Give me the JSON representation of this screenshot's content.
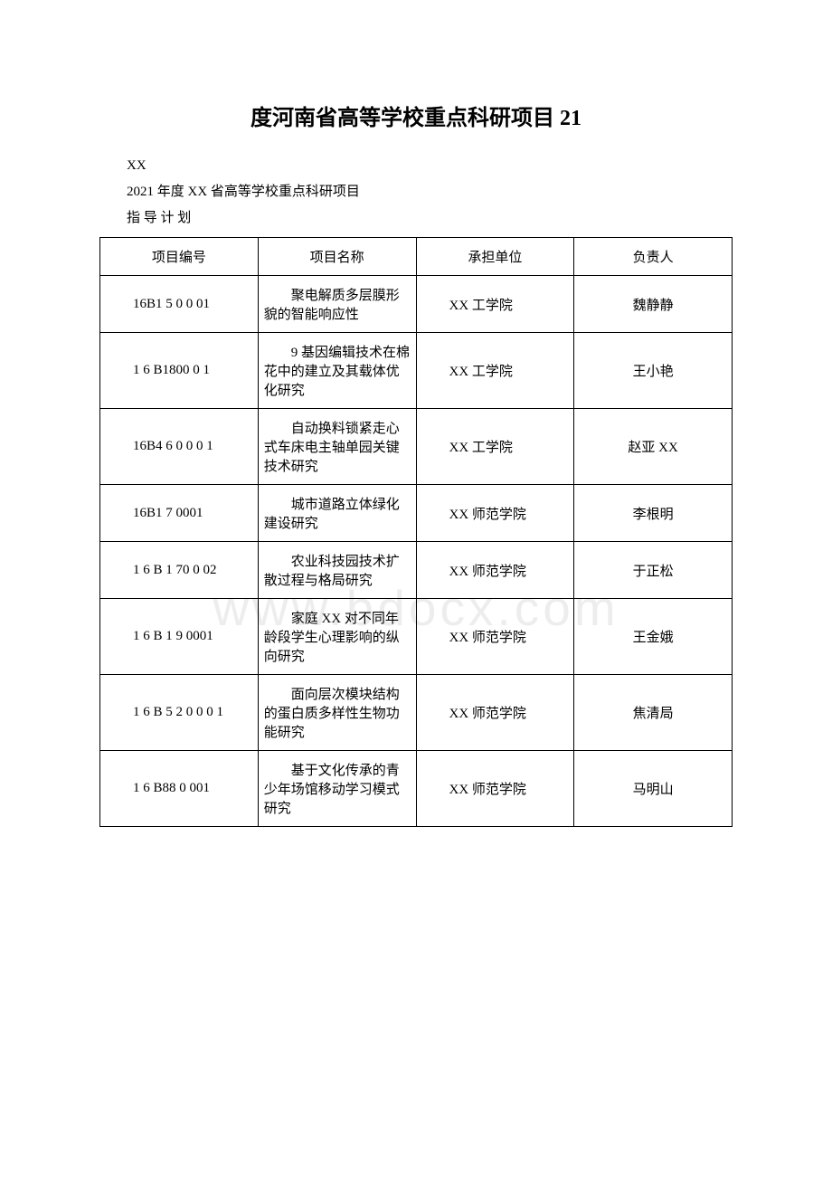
{
  "document": {
    "title": "度河南省高等学校重点科研项目 21",
    "meta_xx": "XX",
    "meta_year": "2021 年度 XX 省高等学校重点科研项目",
    "meta_plan": "指 导   计 划",
    "watermark": "www.bdocx.com"
  },
  "table": {
    "columns": [
      "项目编号",
      "项目名称",
      "承担单位",
      "负责人"
    ],
    "rows": [
      {
        "code": "16B1 5 0 0 01",
        "name": "聚电解质多层膜形貌的智能响应性",
        "unit": "XX 工学院",
        "person": "魏静静"
      },
      {
        "code": "1 6 B1800 0 1",
        "name": "9 基因编辑技术在棉花中的建立及其载体优化研究",
        "unit": "XX 工学院",
        "person": "王小艳"
      },
      {
        "code": "16B4 6 0 0 0  1",
        "name": "自动换料锁紧走心式车床电主轴单园关键技术研究",
        "unit": "XX 工学院",
        "person": "赵亚 XX"
      },
      {
        "code": "16B1 7 0001",
        "name": "城市道路立体绿化建设研究",
        "unit": "XX 师范学院",
        "person": "李根明"
      },
      {
        "code": "1 6 B  1 70  0 02",
        "name": "农业科技园技术扩散过程与格局研究",
        "unit": "XX 师范学院",
        "person": "于正松"
      },
      {
        "code": "1 6 B 1 9 0001",
        "name": "家庭 XX 对不同年龄段学生心理影响的纵向研究",
        "unit": "XX 师范学院",
        "person": "王金娥"
      },
      {
        "code": "1 6 B 5 2 0 0  0 1",
        "name": "面向层次模块结构的蛋白质多样性生物功能研究",
        "unit": "XX 师范学院",
        "person": "焦清局"
      },
      {
        "code": "1 6 B88 0 001",
        "name": "基于文化传承的青少年场馆移动学习模式研究",
        "unit": "XX 师范学院",
        "person": "马明山"
      }
    ]
  },
  "styling": {
    "background_color": "#ffffff",
    "text_color": "#000000",
    "border_color": "#000000",
    "watermark_color": "rgba(0,0,0,0.07)",
    "title_fontsize": 24,
    "body_fontsize": 15,
    "watermark_fontsize": 55
  }
}
